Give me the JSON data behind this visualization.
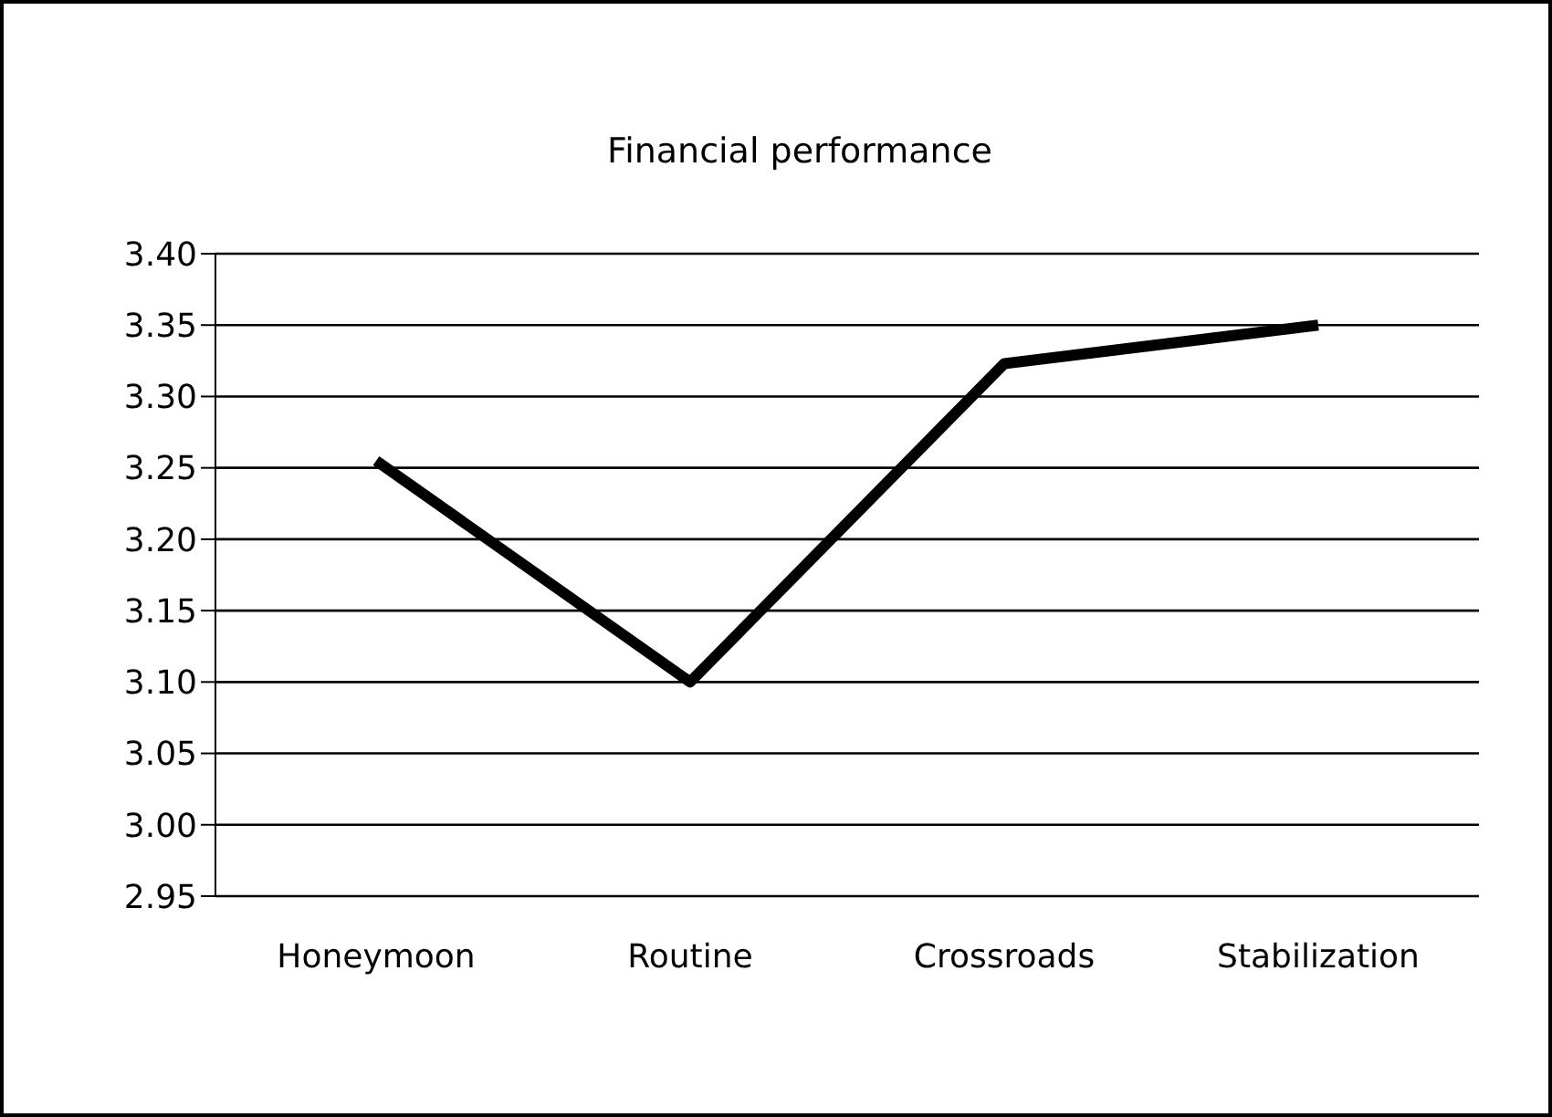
{
  "chart_data": {
    "type": "line",
    "title": "Financial performance",
    "categories": [
      "Honeymoon",
      "Routine",
      "Crossroads",
      "Stabilization"
    ],
    "series": [
      {
        "color": "#000000",
        "values": [
          3.255,
          3.1,
          3.323,
          3.35
        ]
      }
    ],
    "ylim": [
      2.95,
      3.4
    ],
    "yticks": [
      {
        "value": 2.95,
        "label": "2.95"
      },
      {
        "value": 3,
        "label": "3.00"
      },
      {
        "value": 3.05,
        "label": "3.05"
      },
      {
        "value": 3.1,
        "label": "3.10"
      },
      {
        "value": 3.15,
        "label": "3.15"
      },
      {
        "value": 3.2,
        "label": "3.20"
      },
      {
        "value": 3.25,
        "label": "3.25"
      },
      {
        "value": 3.3,
        "label": "3.30"
      },
      {
        "value": 3.35,
        "label": "3.35"
      },
      {
        "value": 3.4,
        "label": "3.40"
      }
    ],
    "grid": "y",
    "legend": false,
    "marker": "none",
    "line_style": "solid"
  }
}
